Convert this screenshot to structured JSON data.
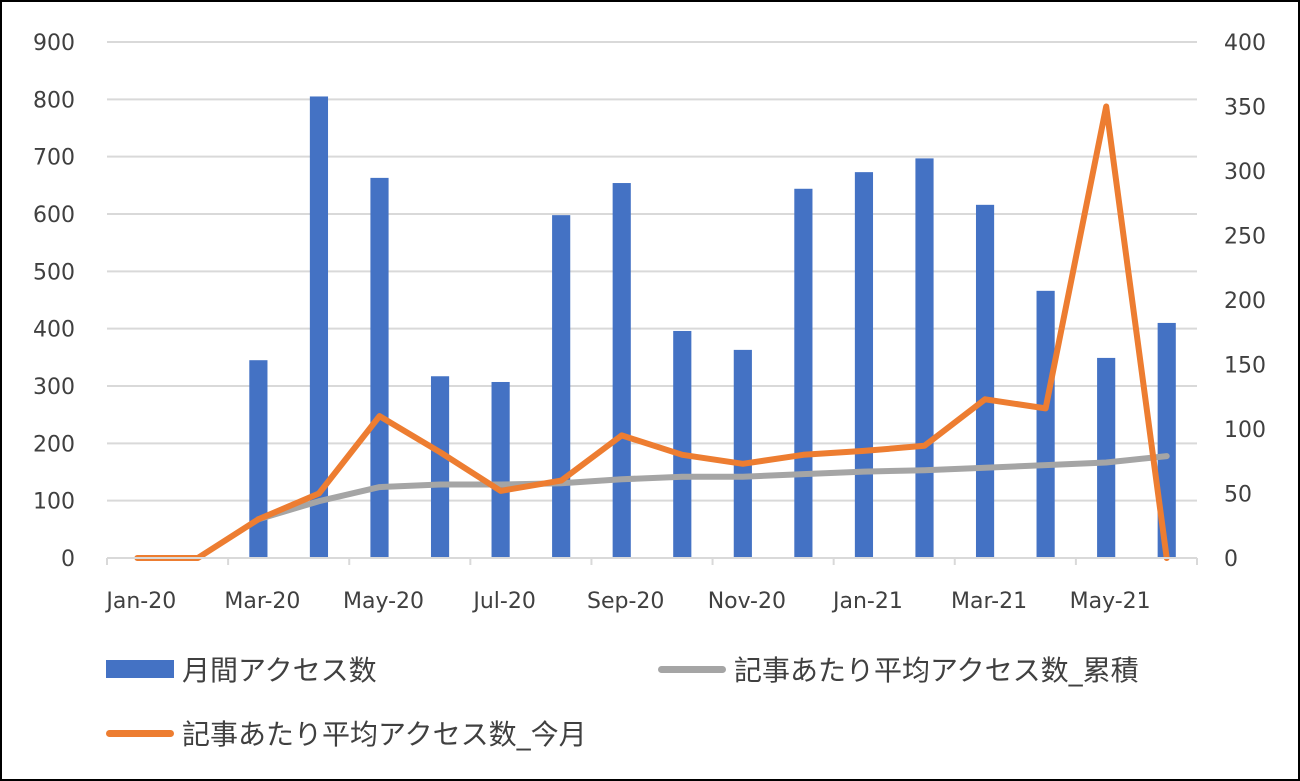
{
  "chart_data": {
    "type": "bar",
    "categories": [
      "Jan-20",
      "Feb-20",
      "Mar-20",
      "Apr-20",
      "May-20",
      "Jun-20",
      "Jul-20",
      "Aug-20",
      "Sep-20",
      "Oct-20",
      "Nov-20",
      "Dec-20",
      "Jan-21",
      "Feb-21",
      "Mar-21",
      "Apr-21",
      "May-21",
      "Jun-21"
    ],
    "x_tick_labels": [
      "Jan-20",
      "Mar-20",
      "May-20",
      "Jul-20",
      "Sep-20",
      "Nov-20",
      "Jan-21",
      "Mar-21",
      "May-21"
    ],
    "y_ticks": [
      "0",
      "100",
      "200",
      "300",
      "400",
      "500",
      "600",
      "700",
      "800",
      "900"
    ],
    "y2_ticks": [
      "0",
      "50",
      "100",
      "150",
      "200",
      "250",
      "300",
      "350",
      "400"
    ],
    "ylim": [
      0,
      900
    ],
    "y2lim": [
      0,
      400
    ],
    "grid": true,
    "legend_position": "bottom",
    "series": [
      {
        "name": "月間アクセス数",
        "type": "bar",
        "axis": "left",
        "color": "#4472C4",
        "values": [
          0,
          0,
          345,
          805,
          663,
          317,
          307,
          598,
          654,
          396,
          363,
          644,
          673,
          697,
          616,
          466,
          349,
          410
        ]
      },
      {
        "name": "記事あたり平均アクセス数_累積",
        "type": "line",
        "axis": "right",
        "color": "#A5A5A5",
        "values": [
          null,
          null,
          30,
          44,
          55,
          57,
          57,
          58,
          61,
          63,
          63,
          65,
          67,
          68,
          70,
          72,
          74,
          79
        ]
      },
      {
        "name": "記事あたり平均アクセス数_今月",
        "type": "line",
        "axis": "right",
        "color": "#ED7D31",
        "values": [
          0,
          0,
          30,
          50,
          110,
          82,
          52,
          60,
          95,
          80,
          73,
          80,
          83,
          87,
          123,
          116,
          350,
          0
        ]
      }
    ]
  }
}
